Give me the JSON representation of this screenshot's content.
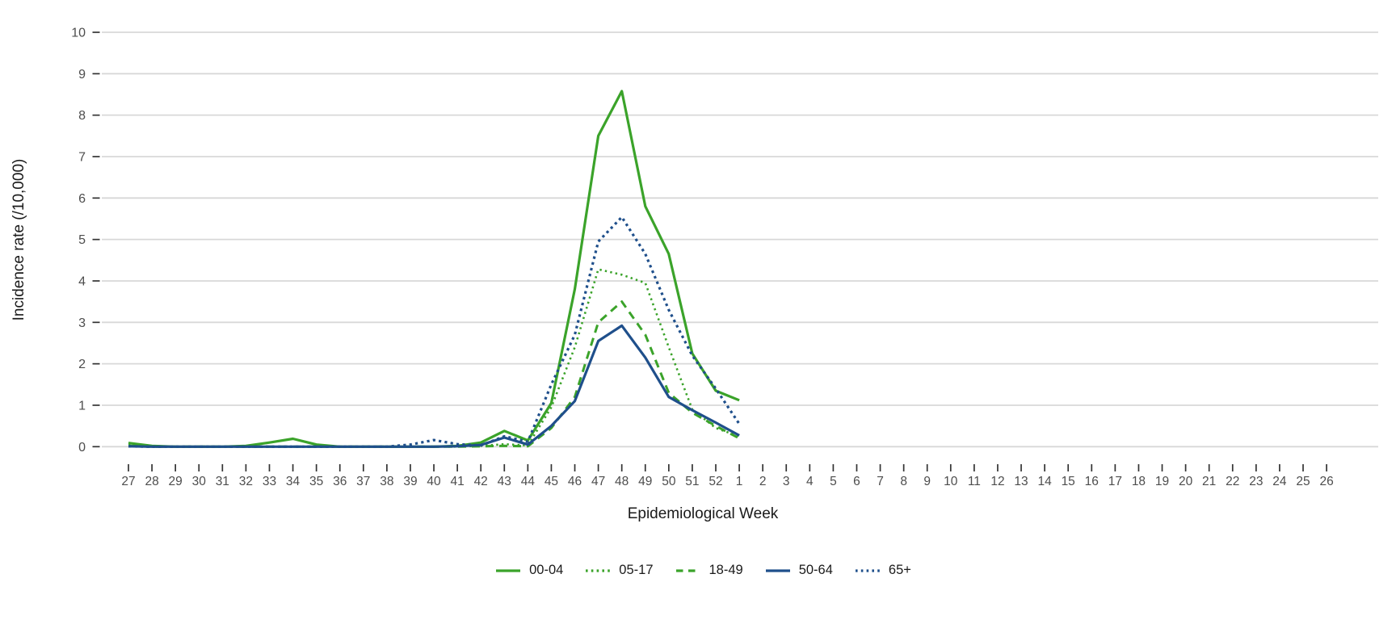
{
  "chart_data": {
    "type": "line",
    "title": "",
    "xlabel": "Epidemiological Week",
    "ylabel": "Incidence rate (/10,000)",
    "x_categories": [
      "27",
      "28",
      "29",
      "30",
      "31",
      "32",
      "33",
      "34",
      "35",
      "36",
      "37",
      "38",
      "39",
      "40",
      "41",
      "42",
      "43",
      "44",
      "45",
      "46",
      "47",
      "48",
      "49",
      "50",
      "51",
      "52",
      "1",
      "2",
      "3",
      "4",
      "5",
      "6",
      "7",
      "8",
      "9",
      "10",
      "11",
      "12",
      "13",
      "14",
      "15",
      "16",
      "17",
      "18",
      "19",
      "20",
      "21",
      "22",
      "23",
      "24",
      "25",
      "26"
    ],
    "ylim": [
      0,
      10
    ],
    "yticks": [
      0,
      1,
      2,
      3,
      4,
      5,
      6,
      7,
      8,
      9,
      10
    ],
    "grid": "horizontal-only",
    "legend_position": "bottom-center",
    "background_color": "#ffffff",
    "colors": {
      "green_series": "#3BA32A",
      "blue_series": "#1F4F8B",
      "gridline": "#D8D8D8",
      "tick_mark": "#333333",
      "tick_label": "#4D4D4D",
      "axis_title": "#1A1A1A"
    },
    "series": [
      {
        "name": "00-04",
        "color": "#3BA32A",
        "line_style": "solid",
        "values": [
          0.09,
          0.02,
          0,
          0,
          0,
          0.02,
          0.1,
          0.19,
          0.05,
          0,
          0,
          0,
          0,
          0,
          0.02,
          0.1,
          0.38,
          0.15,
          1.05,
          3.8,
          7.5,
          8.58,
          5.8,
          4.65,
          2.25,
          1.35,
          1.12,
          null,
          null,
          null,
          null,
          null,
          null,
          null,
          null,
          null,
          null,
          null,
          null,
          null,
          null,
          null,
          null,
          null,
          null,
          null,
          null,
          null,
          null,
          null,
          null,
          null
        ]
      },
      {
        "name": "05-17",
        "color": "#3BA32A",
        "line_style": "dotted",
        "values": [
          0.04,
          0,
          0,
          0,
          0,
          0,
          0,
          0,
          0,
          0,
          0,
          0,
          0,
          0,
          0,
          0.02,
          0.06,
          0.03,
          0.95,
          2.4,
          4.28,
          4.15,
          3.95,
          2.4,
          0.9,
          0.45,
          0.25,
          null,
          null,
          null,
          null,
          null,
          null,
          null,
          null,
          null,
          null,
          null,
          null,
          null,
          null,
          null,
          null,
          null,
          null,
          null,
          null,
          null,
          null,
          null,
          null,
          null
        ]
      },
      {
        "name": "18-49",
        "color": "#3BA32A",
        "line_style": "dashed",
        "values": [
          0.02,
          0,
          0,
          0,
          0,
          0,
          0,
          0,
          0,
          0,
          0,
          0,
          0,
          0,
          0,
          0.01,
          0.02,
          0.01,
          0.45,
          1.2,
          3.0,
          3.5,
          2.7,
          1.3,
          0.82,
          0.5,
          0.2,
          null,
          null,
          null,
          null,
          null,
          null,
          null,
          null,
          null,
          null,
          null,
          null,
          null,
          null,
          null,
          null,
          null,
          null,
          null,
          null,
          null,
          null,
          null,
          null,
          null
        ]
      },
      {
        "name": "50-64",
        "color": "#1F4F8B",
        "line_style": "solid",
        "values": [
          0.01,
          0,
          0,
          0,
          0,
          0,
          0,
          0,
          0,
          0,
          0,
          0,
          0,
          0,
          0.01,
          0.04,
          0.22,
          0.05,
          0.5,
          1.1,
          2.55,
          2.92,
          2.15,
          1.2,
          0.88,
          0.58,
          0.27,
          null,
          null,
          null,
          null,
          null,
          null,
          null,
          null,
          null,
          null,
          null,
          null,
          null,
          null,
          null,
          null,
          null,
          null,
          null,
          null,
          null,
          null,
          null,
          null,
          null
        ]
      },
      {
        "name": "65+",
        "color": "#1F4F8B",
        "line_style": "dotted",
        "values": [
          0.01,
          0,
          0,
          0,
          0,
          0,
          0,
          0,
          0,
          0,
          0,
          0,
          0.05,
          0.16,
          0.06,
          0.03,
          0.25,
          0.12,
          1.5,
          2.7,
          4.95,
          5.54,
          4.65,
          3.3,
          2.2,
          1.4,
          0.55,
          null,
          null,
          null,
          null,
          null,
          null,
          null,
          null,
          null,
          null,
          null,
          null,
          null,
          null,
          null,
          null,
          null,
          null,
          null,
          null,
          null,
          null,
          null,
          null,
          null
        ]
      }
    ]
  }
}
